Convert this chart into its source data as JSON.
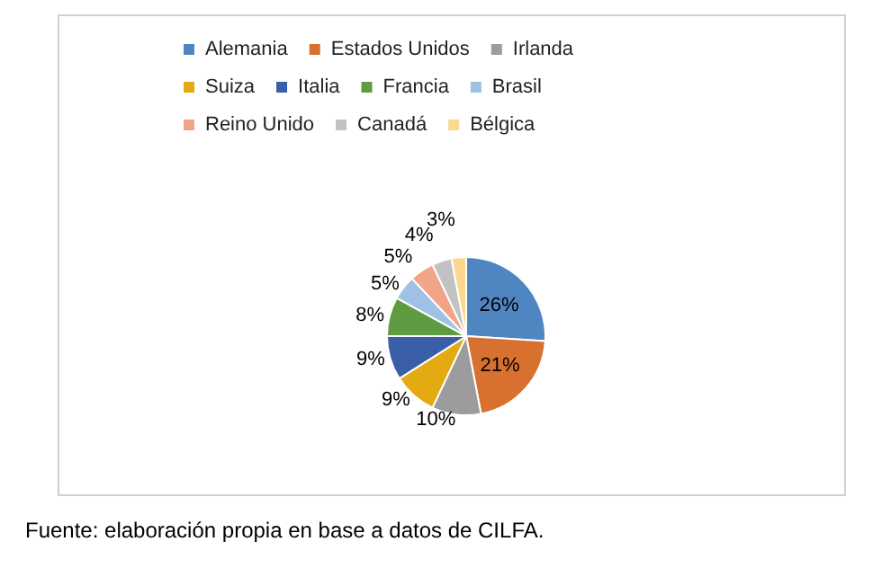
{
  "chart_data": {
    "type": "pie",
    "categories": [
      "Alemania",
      "Estados Unidos",
      "Irlanda",
      "Suiza",
      "Italia",
      "Francia",
      "Brasil",
      "Reino Unido",
      "Canadá",
      "Bélgica"
    ],
    "values": [
      26,
      21,
      10,
      9,
      9,
      8,
      5,
      5,
      4,
      3
    ],
    "colors": [
      "#4f86c2",
      "#d8702f",
      "#9c9c9c",
      "#e3aa12",
      "#3b5ea8",
      "#5f9b41",
      "#9ec1e5",
      "#f2a488",
      "#c2c2c2",
      "#fcd88f"
    ],
    "value_labels": [
      "26%",
      "21%",
      "10%",
      "9%",
      "9%",
      "8%",
      "5%",
      "5%",
      "4%",
      "3%"
    ],
    "legend": "top",
    "annotations": [
      "Fuente: elaboración propia en base a datos de CILFA."
    ]
  }
}
